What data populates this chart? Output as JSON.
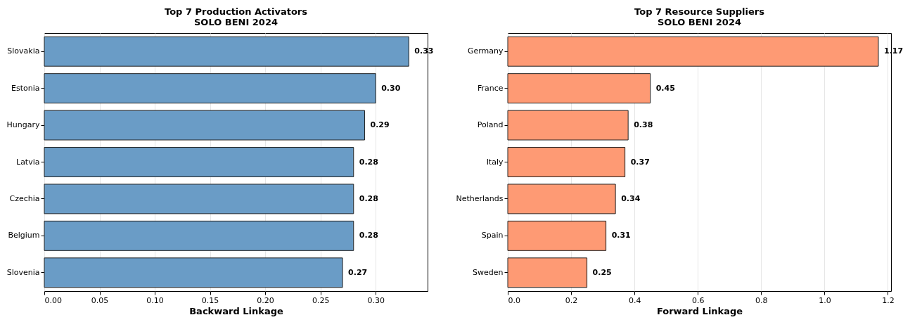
{
  "chart_data": [
    {
      "type": "bar",
      "orientation": "horizontal",
      "title": "Top 7 Production Activators\nSOLO BENI 2024",
      "xlabel": "Backward Linkage",
      "categories": [
        "Slovakia",
        "Estonia",
        "Hungary",
        "Latvia",
        "Czechia",
        "Belgium",
        "Slovenia"
      ],
      "values": [
        0.33,
        0.3,
        0.29,
        0.28,
        0.28,
        0.28,
        0.27
      ],
      "color": "#6a9cc6",
      "xlim": [
        0,
        0.347
      ],
      "xticks": [
        {
          "value": 0,
          "label": "0.00"
        },
        0.05,
        {
          "value": 0.1,
          "label": "0.10"
        },
        0.15,
        {
          "value": 0.2,
          "label": "0.20"
        },
        0.25,
        {
          "value": 0.3,
          "label": "0.30"
        }
      ],
      "grid": "x",
      "value_labels": [
        "0.33",
        "0.30",
        "0.29",
        "0.28",
        "0.28",
        "0.28",
        "0.27"
      ]
    },
    {
      "type": "bar",
      "orientation": "horizontal",
      "title": "Top 7 Resource Suppliers\nSOLO BENI 2024",
      "xlabel": "Forward Linkage",
      "categories": [
        "Germany",
        "France",
        "Poland",
        "Italy",
        "Netherlands",
        "Spain",
        "Sweden"
      ],
      "values": [
        1.17,
        0.45,
        0.38,
        0.37,
        0.34,
        0.31,
        0.25
      ],
      "color": "#fe9a74",
      "xlim": [
        0,
        1.21
      ],
      "xticks": [
        {
          "value": 0,
          "label": "0.0"
        },
        0.2,
        0.4,
        0.6,
        0.8,
        {
          "value": 1,
          "label": "1.0"
        },
        1.2
      ],
      "grid": "x",
      "value_labels": [
        "1.17",
        "0.45",
        "0.38",
        "0.37",
        "0.34",
        "0.31",
        "0.25"
      ]
    }
  ]
}
